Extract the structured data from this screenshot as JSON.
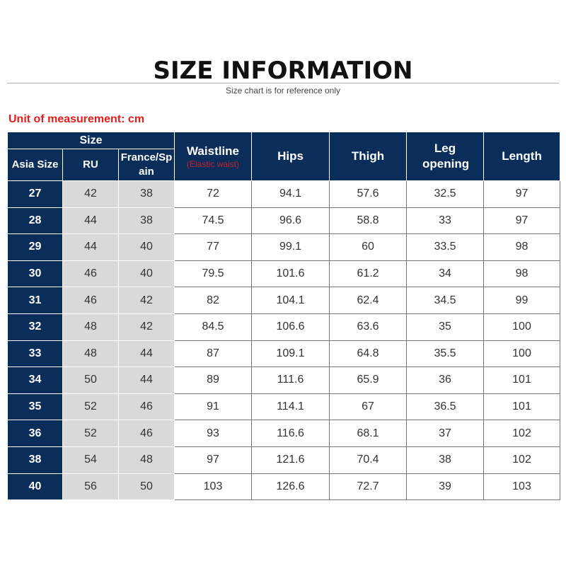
{
  "header": {
    "title": "SIZE INFORMATION",
    "subtitle": "Size chart is for reference only",
    "unit": "Unit of measurement: cm"
  },
  "colors": {
    "header_bg": "#0a2d5a",
    "size_cols_bg": "#d9d9d9",
    "accent_red": "#e01e1e"
  },
  "table": {
    "group_header": "Size",
    "columns": {
      "asia": "Asia Size",
      "ru": "RU",
      "france": "France/Spain",
      "waist": "Waistline",
      "waist_note": "(Elastic waist)",
      "hips": "Hips",
      "thigh": "Thigh",
      "leg": "Leg opening",
      "length": "Length"
    },
    "rows": [
      [
        "27",
        "42",
        "38",
        "72",
        "94.1",
        "57.6",
        "32.5",
        "97"
      ],
      [
        "28",
        "44",
        "38",
        "74.5",
        "96.6",
        "58.8",
        "33",
        "97"
      ],
      [
        "29",
        "44",
        "40",
        "77",
        "99.1",
        "60",
        "33.5",
        "98"
      ],
      [
        "30",
        "46",
        "40",
        "79.5",
        "101.6",
        "61.2",
        "34",
        "98"
      ],
      [
        "31",
        "46",
        "42",
        "82",
        "104.1",
        "62.4",
        "34.5",
        "99"
      ],
      [
        "32",
        "48",
        "42",
        "84.5",
        "106.6",
        "63.6",
        "35",
        "100"
      ],
      [
        "33",
        "48",
        "44",
        "87",
        "109.1",
        "64.8",
        "35.5",
        "100"
      ],
      [
        "34",
        "50",
        "44",
        "89",
        "111.6",
        "65.9",
        "36",
        "101"
      ],
      [
        "35",
        "52",
        "46",
        "91",
        "114.1",
        "67",
        "36.5",
        "101"
      ],
      [
        "36",
        "52",
        "46",
        "93",
        "116.6",
        "68.1",
        "37",
        "102"
      ],
      [
        "38",
        "54",
        "48",
        "97",
        "121.6",
        "70.4",
        "38",
        "102"
      ],
      [
        "40",
        "56",
        "50",
        "103",
        "126.6",
        "72.7",
        "39",
        "103"
      ]
    ]
  }
}
